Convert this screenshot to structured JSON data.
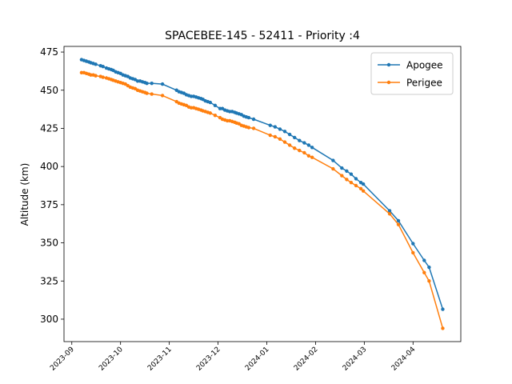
{
  "chart_data": {
    "type": "line",
    "title": "SPACEBEE-145 - 52411 - Priority :4",
    "y_label": "Altitude (km)",
    "x": [
      9.2,
      9.25,
      9.3,
      9.35,
      9.39,
      9.44,
      9.49,
      9.59,
      9.64,
      9.71,
      9.76,
      9.81,
      9.85,
      9.9,
      9.95,
      10.0,
      10.05,
      10.1,
      10.15,
      10.2,
      10.25,
      10.3,
      10.35,
      10.4,
      10.45,
      10.5,
      10.54,
      10.64,
      10.86,
      11.15,
      11.2,
      11.25,
      11.3,
      11.35,
      11.4,
      11.45,
      11.5,
      11.55,
      11.6,
      11.65,
      11.69,
      11.74,
      11.79,
      11.84,
      11.94,
      12.04,
      12.09,
      12.14,
      12.19,
      12.24,
      12.29,
      12.34,
      12.38,
      12.43,
      12.48,
      12.53,
      12.58,
      12.63,
      12.73,
      13.07,
      13.17,
      13.27,
      13.37,
      13.47,
      13.57,
      13.67,
      13.77,
      13.86,
      13.93,
      14.36,
      14.54,
      14.64,
      14.73,
      14.83,
      14.93,
      14.98,
      15.52,
      15.7,
      16.0,
      16.23,
      16.33,
      16.61
    ],
    "series": [
      {
        "name": "Apogee",
        "color": "#1f77b4",
        "values": [
          470,
          469.5,
          469,
          468.5,
          468,
          467.5,
          467,
          466,
          465.5,
          464.5,
          464,
          463.5,
          463,
          462,
          461.5,
          461,
          460,
          459.5,
          459,
          458,
          457.5,
          457,
          456,
          456,
          455.5,
          455,
          454.5,
          454.5,
          454,
          450,
          449,
          448.5,
          448,
          447,
          446.5,
          446,
          446,
          445.5,
          445,
          444.5,
          444,
          443,
          442.5,
          442,
          440,
          438,
          438,
          437,
          436.5,
          436,
          436,
          435.5,
          435,
          434.5,
          434,
          433,
          432.5,
          432,
          431,
          427,
          426,
          424.5,
          423,
          421,
          419,
          417,
          415.5,
          414,
          412.5,
          404,
          399,
          397,
          395,
          392,
          389.5,
          388.5,
          371,
          364.5,
          349.5,
          338.5,
          334,
          306.5
        ]
      },
      {
        "name": "Perigee",
        "color": "#ff7f0e",
        "values": [
          461.5,
          461.5,
          461,
          460.5,
          460,
          460,
          459.5,
          459,
          458.5,
          458,
          457.5,
          457,
          456.5,
          456,
          455.5,
          455,
          454.5,
          454,
          453,
          452,
          451.5,
          451,
          450,
          449.5,
          449,
          448.5,
          448,
          447.5,
          446.5,
          442.5,
          441.5,
          441,
          440.5,
          440,
          439,
          438.5,
          438.5,
          438,
          437.5,
          437,
          436.5,
          436,
          435.5,
          435,
          433.5,
          432,
          431,
          430.5,
          430,
          430,
          429.5,
          429,
          428.5,
          428,
          427,
          426.5,
          426,
          425.5,
          425,
          420.5,
          419.5,
          418,
          416,
          414,
          412,
          410.5,
          409,
          407,
          406,
          398.5,
          394,
          391.5,
          389.5,
          387.5,
          385.5,
          384,
          369,
          362,
          343.5,
          330.5,
          325,
          294
        ]
      }
    ],
    "xlim": [
      8.84,
      16.98
    ],
    "xticks": [
      {
        "value": 9,
        "label": "2023-09"
      },
      {
        "value": 10,
        "label": "2023-10"
      },
      {
        "value": 11,
        "label": "2023-11"
      },
      {
        "value": 12,
        "label": "2023-12"
      },
      {
        "value": 13,
        "label": "2024-01"
      },
      {
        "value": 14,
        "label": "2024-02"
      },
      {
        "value": 15,
        "label": "2024-03"
      },
      {
        "value": 16,
        "label": "2024-04"
      }
    ],
    "ylim": [
      285.3,
      478.7
    ],
    "yticks": [
      300,
      325,
      350,
      375,
      400,
      425,
      450,
      475
    ],
    "legend": "upper right"
  }
}
